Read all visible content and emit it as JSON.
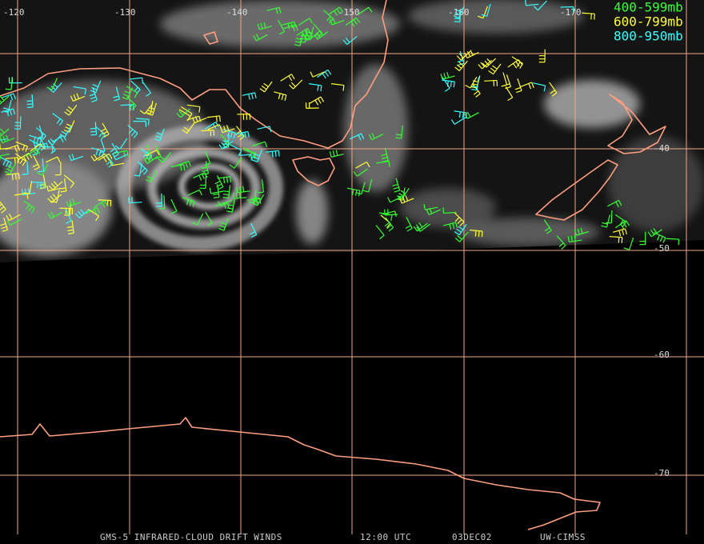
{
  "map": {
    "longitude_labels": [
      "-120",
      "-130",
      "-140",
      "-150",
      "-160",
      "-170"
    ],
    "latitude_labels": [
      "-40",
      "-50",
      "-60",
      "-70"
    ],
    "legend": [
      "400-599mb",
      "600-799mb",
      "800-950mb"
    ],
    "footer": [
      "GMS-5 INFRARED-CLOUD DRIFT WINDS",
      "12:00 UTC",
      "03DEC02",
      "UW-CIMSS"
    ]
  }
}
